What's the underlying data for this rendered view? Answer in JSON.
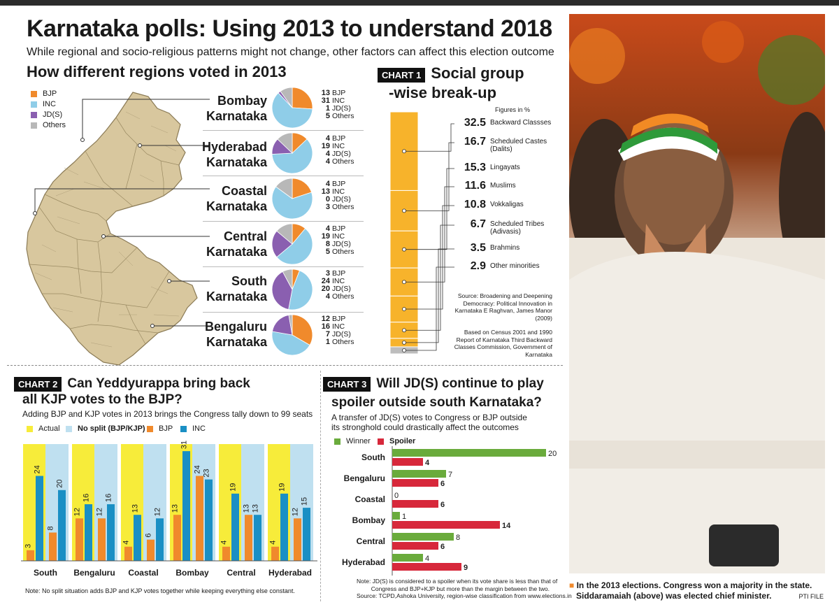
{
  "headline": "Karnataka polls: Using 2013 to understand 2018",
  "subheadline": "While regional and socio-religious patterns might not change, other factors can affect this election outcome",
  "regions_section": {
    "title": "How different regions voted in 2013",
    "legend": [
      {
        "label": "BJP",
        "color": "#f08a2c"
      },
      {
        "label": "INC",
        "color": "#8fcde8"
      },
      {
        "label": "JD(S)",
        "color": "#8a5fb0"
      },
      {
        "label": "Others",
        "color": "#b8b8b8"
      }
    ],
    "regions": [
      {
        "name1": "Bombay",
        "name2": "Karnataka",
        "values": [
          13,
          31,
          1,
          5
        ]
      },
      {
        "name1": "Hyderabad",
        "name2": "Karnataka",
        "values": [
          4,
          19,
          4,
          4
        ]
      },
      {
        "name1": "Coastal",
        "name2": "Karnataka",
        "values": [
          4,
          13,
          0,
          3
        ]
      },
      {
        "name1": "Central",
        "name2": "Karnataka",
        "values": [
          4,
          19,
          8,
          5
        ]
      },
      {
        "name1": "South",
        "name2": "Karnataka",
        "values": [
          3,
          24,
          20,
          4
        ]
      },
      {
        "name1": "Bengaluru",
        "name2": "Karnataka",
        "values": [
          12,
          16,
          7,
          1
        ]
      }
    ],
    "party_labels": [
      "BJP",
      "INC",
      "JD(S)",
      "Others"
    ]
  },
  "chart1": {
    "tag": "CHART 1",
    "title1": "Social group",
    "title2": "-wise break-up",
    "unit_note": "Figures in %",
    "bar_color": "#f7b32b",
    "source1": "Source: Broadening and Deepening Democracy: Political Innovation in Karnataka E Raghvan, James Manor (2009)",
    "source2": "Based on Census 2001 and 1990 Report of Karnataka Third Backward Classes Commission, Government of Karnataka",
    "groups": [
      {
        "value": "32.5",
        "label1": "Backward Classses",
        "label2": ""
      },
      {
        "value": "16.7",
        "label1": "Scheduled Castes",
        "label2": "(Dalits)"
      },
      {
        "value": "15.3",
        "label1": "Lingayats",
        "label2": ""
      },
      {
        "value": "11.6",
        "label1": "Muslims",
        "label2": ""
      },
      {
        "value": "10.8",
        "label1": "Vokkaligas",
        "label2": ""
      },
      {
        "value": "6.7",
        "label1": "Scheduled Tribes",
        "label2": "(Adivasis)"
      },
      {
        "value": "3.5",
        "label1": "Brahmins",
        "label2": ""
      },
      {
        "value": "2.9",
        "label1": "Other minorities",
        "label2": ""
      }
    ]
  },
  "chart2": {
    "tag": "CHART 2",
    "title1": "Can Yeddyurappa bring back",
    "title2": "all KJP votes to the BJP?",
    "subtitle": "Adding BJP and KJP votes in 2013 brings the Congress tally down to 99 seats",
    "legend": [
      {
        "label": "Actual",
        "color": "#f7ec3a"
      },
      {
        "label": "No split (BJP/KJP)",
        "color": "#bfe0f0"
      },
      {
        "label": "BJP",
        "color": "#f08a2c"
      },
      {
        "label": "INC",
        "color": "#1a8fc4"
      }
    ],
    "note": "Note: No split situation adds BJP and KJP votes together while keeping everything else constant."
  },
  "chart3": {
    "tag": "CHART 3",
    "title1": "Will JD(S) continue to play",
    "title2": "spoiler outside south Karnataka?",
    "subtitle1": "A transfer of JD(S) votes to Congress or BJP outside",
    "subtitle2": "its stronghold could drastically affect the outcomes",
    "legend": [
      {
        "label": "Winner",
        "color": "#6aab3c"
      },
      {
        "label": "Spoiler",
        "color": "#d7283b"
      }
    ],
    "note1": "Note: JD(S) is considered to a spoiler when its vote share is less than that of",
    "note2": "Congress and BJP+KJP but more than the margin between the two.",
    "note3": "Source: TCPD,Ashoka University, region-wise classification from www.elections.in"
  },
  "photo": {
    "caption1": "In the 2013 elections. Congress won a majority in the state.",
    "caption2": "Siddaramaiah (above) was elected chief minister.",
    "credit": "PTI FILE"
  },
  "chart_data": [
    {
      "type": "pie",
      "title": "How different regions voted in 2013",
      "series_names": [
        "BJP",
        "INC",
        "JD(S)",
        "Others"
      ],
      "categories": [
        "Bombay Karnataka",
        "Hyderabad Karnataka",
        "Coastal Karnataka",
        "Central Karnataka",
        "South Karnataka",
        "Bengaluru Karnataka"
      ],
      "values": [
        [
          13,
          31,
          1,
          5
        ],
        [
          4,
          19,
          4,
          4
        ],
        [
          4,
          13,
          0,
          3
        ],
        [
          4,
          19,
          8,
          5
        ],
        [
          3,
          24,
          20,
          4
        ],
        [
          12,
          16,
          7,
          1
        ]
      ]
    },
    {
      "type": "bar",
      "title": "Social group -wise break-up",
      "ylabel": "Figures in %",
      "categories": [
        "Backward Classses",
        "Scheduled Castes (Dalits)",
        "Lingayats",
        "Muslims",
        "Vokkaligas",
        "Scheduled Tribes (Adivasis)",
        "Brahmins",
        "Other minorities"
      ],
      "values": [
        32.5,
        16.7,
        15.3,
        11.6,
        10.8,
        6.7,
        3.5,
        2.9
      ]
    },
    {
      "type": "bar",
      "title": "Can Yeddyurappa bring back all KJP votes to the BJP?",
      "categories": [
        "South",
        "Bengaluru",
        "Coastal",
        "Bombay",
        "Central",
        "Hyderabad"
      ],
      "series": [
        {
          "name": "Actual BJP",
          "values": [
            3,
            12,
            4,
            13,
            4,
            4
          ]
        },
        {
          "name": "Actual INC",
          "values": [
            24,
            16,
            13,
            31,
            19,
            19
          ]
        },
        {
          "name": "No split BJP",
          "values": [
            8,
            12,
            6,
            24,
            13,
            12
          ]
        },
        {
          "name": "No split INC",
          "values": [
            20,
            16,
            12,
            23,
            13,
            15
          ]
        }
      ],
      "ylim": [
        0,
        33
      ]
    },
    {
      "type": "bar",
      "title": "Will JD(S) continue to play spoiler outside south Karnataka?",
      "categories": [
        "South",
        "Bengaluru",
        "Coastal",
        "Bombay",
        "Central",
        "Hyderabad"
      ],
      "series": [
        {
          "name": "Winner",
          "values": [
            20,
            7,
            0,
            1,
            8,
            4
          ]
        },
        {
          "name": "Spoiler",
          "values": [
            4,
            6,
            6,
            14,
            6,
            9
          ]
        }
      ],
      "xlim": [
        0,
        20
      ]
    }
  ]
}
